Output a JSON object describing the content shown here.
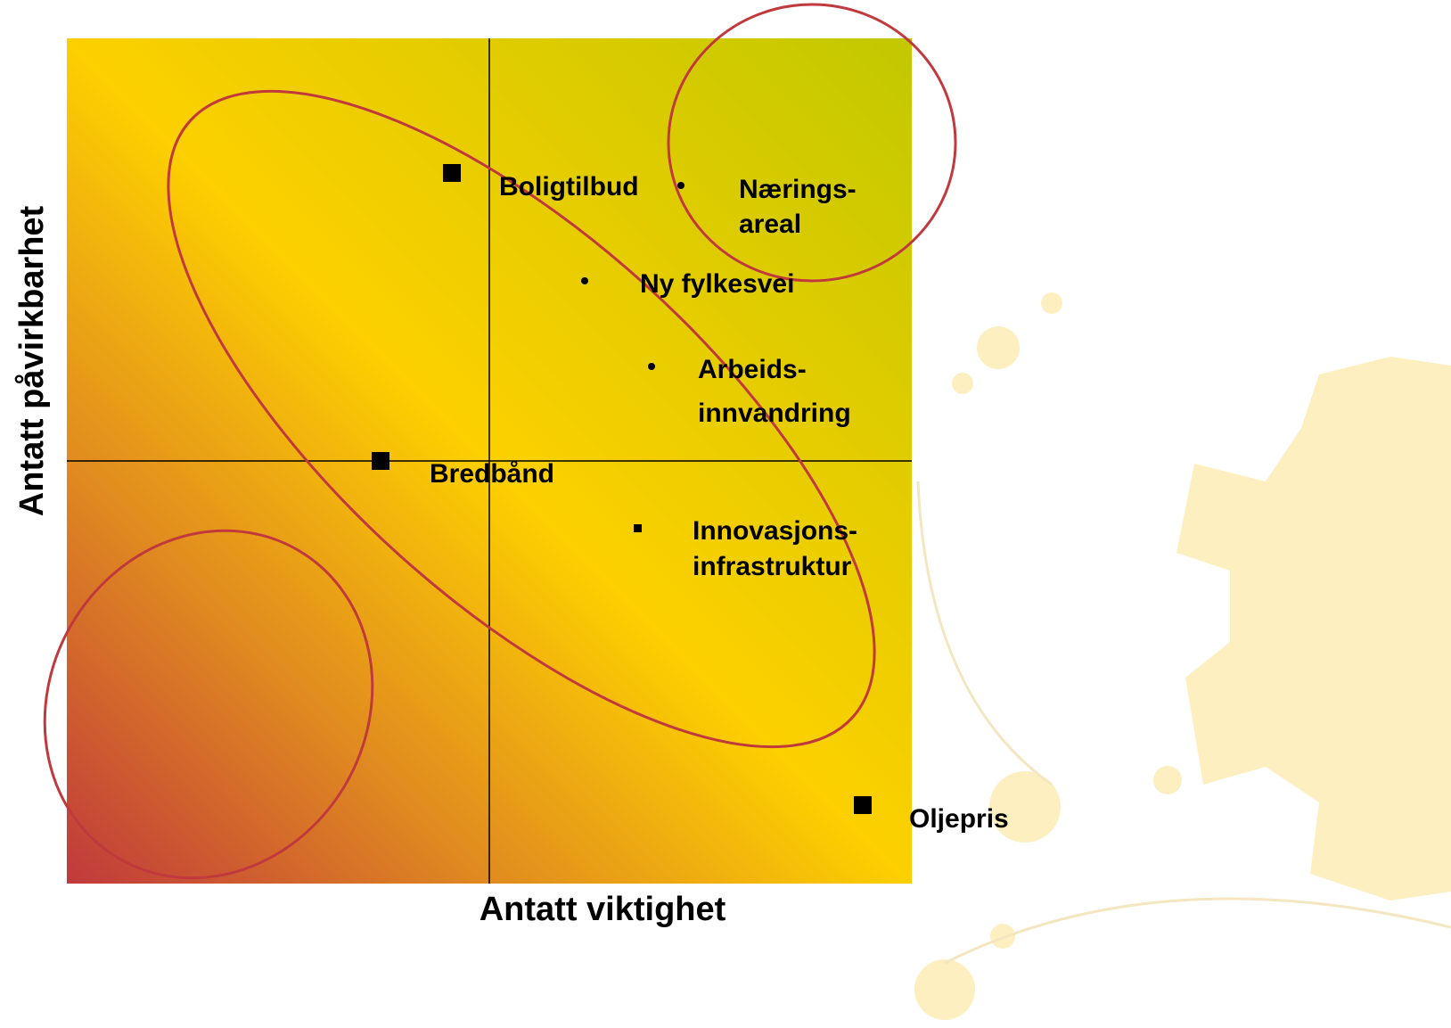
{
  "axes": {
    "x_label": "Antatt viktighet",
    "y_label": "Antatt påvirkbarhet"
  },
  "items": [
    {
      "lines": [
        "Boligtilbud"
      ]
    },
    {
      "lines": [
        "Nærings-",
        "areal"
      ]
    },
    {
      "lines": [
        "Ny fylkesvei"
      ]
    },
    {
      "lines": [
        "Arbeids-",
        "innvandring"
      ]
    },
    {
      "lines": [
        "Bredbånd"
      ]
    },
    {
      "lines": [
        "Innovasjons-",
        "infrastruktur"
      ]
    },
    {
      "lines": [
        "Oljepris"
      ]
    }
  ]
}
